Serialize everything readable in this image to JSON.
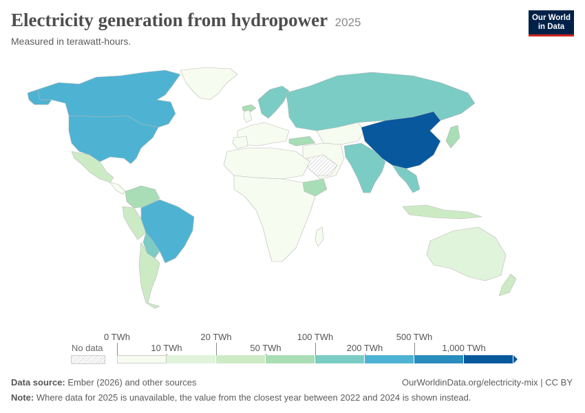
{
  "header": {
    "title": "Electricity generation from hydropower",
    "year": "2025",
    "subtitle": "Measured in terawatt-hours.",
    "logo_line1": "Our World",
    "logo_line2": "in Data"
  },
  "legend": {
    "no_data_label": "No data",
    "thresholds": [
      "0 TWh",
      "10 TWh",
      "20 TWh",
      "50 TWh",
      "100 TWh",
      "200 TWh",
      "500 TWh",
      "1,000 TWh"
    ],
    "colors": [
      "#f7fcf0",
      "#e0f3db",
      "#ccebc5",
      "#a8ddb5",
      "#7bccc4",
      "#4eb3d3",
      "#2b8cbe",
      "#08589e"
    ],
    "no_data_pattern": "hatched-grey"
  },
  "map_data": {
    "unit": "TWh",
    "regions": [
      {
        "name": "China",
        "bin": 7
      },
      {
        "name": "Canada",
        "bin": 5
      },
      {
        "name": "United States",
        "bin": 5
      },
      {
        "name": "Brazil",
        "bin": 5
      },
      {
        "name": "Russia",
        "bin": 4
      },
      {
        "name": "India",
        "bin": 4
      },
      {
        "name": "Norway",
        "bin": 4
      },
      {
        "name": "Vietnam",
        "bin": 4
      },
      {
        "name": "Venezuela",
        "bin": 3
      },
      {
        "name": "Colombia",
        "bin": 3
      },
      {
        "name": "Sweden",
        "bin": 3
      },
      {
        "name": "Turkey",
        "bin": 3
      },
      {
        "name": "Japan",
        "bin": 3
      },
      {
        "name": "Iceland",
        "bin": 3
      },
      {
        "name": "Ethiopia",
        "bin": 3
      },
      {
        "name": "Peru",
        "bin": 2
      },
      {
        "name": "Argentina",
        "bin": 2
      },
      {
        "name": "Chile",
        "bin": 2
      },
      {
        "name": "Mexico",
        "bin": 2
      },
      {
        "name": "Paraguay",
        "bin": 4
      },
      {
        "name": "Pakistan",
        "bin": 3
      },
      {
        "name": "New Zealand",
        "bin": 2
      },
      {
        "name": "Australia",
        "bin": 1
      },
      {
        "name": "Indonesia",
        "bin": 2
      },
      {
        "name": "Greenland",
        "bin": 0
      },
      {
        "name": "Saudi Arabia",
        "bin": -1
      }
    ]
  },
  "footer": {
    "source_label": "Data source:",
    "source_text": "Ember (2026) and other sources",
    "url": "OurWorldinData.org/electricity-mix | CC BY",
    "note_label": "Note:",
    "note_text": "Where data for 2025 is unavailable, the value from the closest year between 2022 and 2024 is shown instead."
  }
}
